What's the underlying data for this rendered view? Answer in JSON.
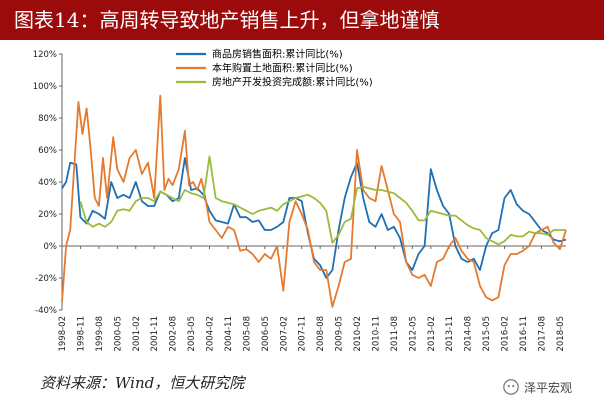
{
  "title": "图表14：高周转导致地产销售上升，但拿地谨慎",
  "source_note": "资料来源：Wind，恒大研究院",
  "watermark": "泽平宏观",
  "chart_data": {
    "type": "line",
    "ylim": [
      -40,
      120
    ],
    "yticks": [
      "-40%",
      "-20%",
      "0%",
      "20%",
      "40%",
      "60%",
      "80%",
      "100%",
      "120%"
    ],
    "ytick_values": [
      -40,
      -20,
      0,
      20,
      40,
      60,
      80,
      100,
      120
    ],
    "y_unit": "%",
    "xlim": [
      "1998-02",
      "2018-08"
    ],
    "x_tick_labels": [
      "1998-02",
      "1998-11",
      "1999-08",
      "2000-05",
      "2001-02",
      "2001-11",
      "2002-08",
      "2003-05",
      "2004-02",
      "2004-11",
      "2005-08",
      "2006-05",
      "2007-02",
      "2007-11",
      "2008-08",
      "2009-05",
      "2010-02",
      "2010-11",
      "2011-08",
      "2012-05",
      "2013-02",
      "2013-11",
      "2014-08",
      "2015-05",
      "2016-02",
      "2016-11",
      "2017-08",
      "2018-05"
    ],
    "legend_position": "top-center",
    "grid": false,
    "series": [
      {
        "name": "商品房销售面积:累计同比(%)",
        "color": "#1f6fb5",
        "points": [
          [
            "1998-02",
            36
          ],
          [
            "1998-04",
            40
          ],
          [
            "1998-06",
            52
          ],
          [
            "1998-09",
            51
          ],
          [
            "1998-11",
            18
          ],
          [
            "1999-02",
            14
          ],
          [
            "1999-05",
            22
          ],
          [
            "1999-08",
            20
          ],
          [
            "1999-11",
            17
          ],
          [
            "2000-02",
            40
          ],
          [
            "2000-05",
            30
          ],
          [
            "2000-08",
            32
          ],
          [
            "2000-11",
            30
          ],
          [
            "2001-02",
            40
          ],
          [
            "2001-05",
            28
          ],
          [
            "2001-08",
            25
          ],
          [
            "2001-11",
            25
          ],
          [
            "2002-02",
            34
          ],
          [
            "2002-05",
            32
          ],
          [
            "2002-08",
            28
          ],
          [
            "2002-11",
            30
          ],
          [
            "2003-02",
            55
          ],
          [
            "2003-05",
            35
          ],
          [
            "2003-08",
            36
          ],
          [
            "2003-11",
            32
          ],
          [
            "2004-02",
            22
          ],
          [
            "2004-05",
            16
          ],
          [
            "2004-08",
            15
          ],
          [
            "2004-11",
            14
          ],
          [
            "2005-02",
            26
          ],
          [
            "2005-05",
            18
          ],
          [
            "2005-08",
            18
          ],
          [
            "2005-11",
            15
          ],
          [
            "2006-02",
            16
          ],
          [
            "2006-05",
            10
          ],
          [
            "2006-08",
            10
          ],
          [
            "2006-11",
            12
          ],
          [
            "2007-02",
            15
          ],
          [
            "2007-05",
            30
          ],
          [
            "2007-08",
            30
          ],
          [
            "2007-11",
            28
          ],
          [
            "2008-02",
            8
          ],
          [
            "2008-05",
            -8
          ],
          [
            "2008-08",
            -12
          ],
          [
            "2008-11",
            -20
          ],
          [
            "2009-02",
            -15
          ],
          [
            "2009-05",
            10
          ],
          [
            "2009-08",
            30
          ],
          [
            "2009-11",
            43
          ],
          [
            "2010-02",
            52
          ],
          [
            "2010-05",
            30
          ],
          [
            "2010-08",
            15
          ],
          [
            "2010-11",
            12
          ],
          [
            "2011-02",
            20
          ],
          [
            "2011-05",
            10
          ],
          [
            "2011-08",
            12
          ],
          [
            "2011-11",
            5
          ],
          [
            "2012-02",
            -10
          ],
          [
            "2012-05",
            -15
          ],
          [
            "2012-08",
            -5
          ],
          [
            "2012-11",
            0
          ],
          [
            "2013-02",
            48
          ],
          [
            "2013-05",
            35
          ],
          [
            "2013-08",
            25
          ],
          [
            "2013-11",
            20
          ],
          [
            "2014-02",
            0
          ],
          [
            "2014-05",
            -8
          ],
          [
            "2014-08",
            -10
          ],
          [
            "2014-11",
            -8
          ],
          [
            "2015-02",
            -15
          ],
          [
            "2015-05",
            0
          ],
          [
            "2015-08",
            8
          ],
          [
            "2015-11",
            10
          ],
          [
            "2016-02",
            30
          ],
          [
            "2016-05",
            35
          ],
          [
            "2016-08",
            26
          ],
          [
            "2016-11",
            22
          ],
          [
            "2017-02",
            20
          ],
          [
            "2017-05",
            15
          ],
          [
            "2017-08",
            10
          ],
          [
            "2017-11",
            8
          ],
          [
            "2018-02",
            4
          ],
          [
            "2018-05",
            3
          ],
          [
            "2018-08",
            4
          ]
        ]
      },
      {
        "name": "本年购置土地面积:累计同比(%)",
        "color": "#e57a2e",
        "points": [
          [
            "1998-02",
            -35
          ],
          [
            "1998-04",
            0
          ],
          [
            "1998-06",
            10
          ],
          [
            "1998-08",
            50
          ],
          [
            "1998-10",
            90
          ],
          [
            "1998-12",
            70
          ],
          [
            "1999-02",
            86
          ],
          [
            "1999-04",
            60
          ],
          [
            "1999-06",
            30
          ],
          [
            "1999-08",
            25
          ],
          [
            "1999-10",
            55
          ],
          [
            "1999-12",
            30
          ],
          [
            "2000-03",
            68
          ],
          [
            "2000-05",
            48
          ],
          [
            "2000-08",
            40
          ],
          [
            "2000-11",
            55
          ],
          [
            "2001-02",
            60
          ],
          [
            "2001-05",
            45
          ],
          [
            "2001-08",
            52
          ],
          [
            "2001-11",
            30
          ],
          [
            "2002-02",
            94
          ],
          [
            "2002-04",
            35
          ],
          [
            "2002-06",
            42
          ],
          [
            "2002-08",
            38
          ],
          [
            "2002-11",
            48
          ],
          [
            "2003-02",
            72
          ],
          [
            "2003-04",
            38
          ],
          [
            "2003-06",
            40
          ],
          [
            "2003-08",
            35
          ],
          [
            "2003-10",
            42
          ],
          [
            "2003-12",
            30
          ],
          [
            "2004-02",
            15
          ],
          [
            "2004-05",
            10
          ],
          [
            "2004-08",
            5
          ],
          [
            "2004-11",
            12
          ],
          [
            "2005-02",
            10
          ],
          [
            "2005-05",
            -3
          ],
          [
            "2005-08",
            -2
          ],
          [
            "2005-11",
            -5
          ],
          [
            "2006-02",
            -10
          ],
          [
            "2006-05",
            -5
          ],
          [
            "2006-08",
            -8
          ],
          [
            "2006-11",
            0
          ],
          [
            "2007-02",
            -28
          ],
          [
            "2007-05",
            15
          ],
          [
            "2007-08",
            28
          ],
          [
            "2007-11",
            20
          ],
          [
            "2008-02",
            10
          ],
          [
            "2008-05",
            -10
          ],
          [
            "2008-08",
            -15
          ],
          [
            "2008-11",
            -15
          ],
          [
            "2009-02",
            -38
          ],
          [
            "2009-05",
            -25
          ],
          [
            "2009-08",
            -10
          ],
          [
            "2009-11",
            -8
          ],
          [
            "2010-02",
            60
          ],
          [
            "2010-05",
            35
          ],
          [
            "2010-08",
            30
          ],
          [
            "2010-11",
            28
          ],
          [
            "2011-02",
            50
          ],
          [
            "2011-05",
            35
          ],
          [
            "2011-08",
            20
          ],
          [
            "2011-11",
            15
          ],
          [
            "2012-02",
            -10
          ],
          [
            "2012-05",
            -18
          ],
          [
            "2012-08",
            -20
          ],
          [
            "2012-11",
            -18
          ],
          [
            "2013-02",
            -25
          ],
          [
            "2013-05",
            -10
          ],
          [
            "2013-08",
            -8
          ],
          [
            "2013-11",
            0
          ],
          [
            "2014-02",
            5
          ],
          [
            "2014-05",
            -3
          ],
          [
            "2014-08",
            -8
          ],
          [
            "2014-11",
            -10
          ],
          [
            "2015-02",
            -25
          ],
          [
            "2015-05",
            -32
          ],
          [
            "2015-08",
            -34
          ],
          [
            "2015-11",
            -32
          ],
          [
            "2016-02",
            -12
          ],
          [
            "2016-05",
            -5
          ],
          [
            "2016-08",
            -5
          ],
          [
            "2016-11",
            -3
          ],
          [
            "2017-02",
            0
          ],
          [
            "2017-05",
            8
          ],
          [
            "2017-08",
            10
          ],
          [
            "2017-11",
            12
          ],
          [
            "2018-02",
            2
          ],
          [
            "2018-05",
            -2
          ],
          [
            "2018-08",
            10
          ]
        ]
      },
      {
        "name": "房地产开发投资完成额:累计同比(%)",
        "color": "#9bbb3c",
        "points": [
          [
            "1998-11",
            28
          ],
          [
            "1999-02",
            15
          ],
          [
            "1999-05",
            12
          ],
          [
            "1999-08",
            14
          ],
          [
            "1999-11",
            12
          ],
          [
            "2000-02",
            15
          ],
          [
            "2000-05",
            22
          ],
          [
            "2000-08",
            23
          ],
          [
            "2000-11",
            22
          ],
          [
            "2001-02",
            28
          ],
          [
            "2001-05",
            30
          ],
          [
            "2001-08",
            30
          ],
          [
            "2001-11",
            28
          ],
          [
            "2002-02",
            34
          ],
          [
            "2002-05",
            32
          ],
          [
            "2002-08",
            30
          ],
          [
            "2002-11",
            28
          ],
          [
            "2003-02",
            35
          ],
          [
            "2003-05",
            33
          ],
          [
            "2003-08",
            32
          ],
          [
            "2003-11",
            30
          ],
          [
            "2004-02",
            56
          ],
          [
            "2004-05",
            30
          ],
          [
            "2004-08",
            28
          ],
          [
            "2004-11",
            27
          ],
          [
            "2005-02",
            26
          ],
          [
            "2005-05",
            24
          ],
          [
            "2005-08",
            22
          ],
          [
            "2005-11",
            20
          ],
          [
            "2006-02",
            22
          ],
          [
            "2006-05",
            23
          ],
          [
            "2006-08",
            24
          ],
          [
            "2006-11",
            22
          ],
          [
            "2007-02",
            26
          ],
          [
            "2007-05",
            28
          ],
          [
            "2007-08",
            30
          ],
          [
            "2007-11",
            31
          ],
          [
            "2008-02",
            32
          ],
          [
            "2008-05",
            30
          ],
          [
            "2008-08",
            27
          ],
          [
            "2008-11",
            22
          ],
          [
            "2009-02",
            2
          ],
          [
            "2009-05",
            7
          ],
          [
            "2009-08",
            15
          ],
          [
            "2009-11",
            17
          ],
          [
            "2010-02",
            36
          ],
          [
            "2010-05",
            37
          ],
          [
            "2010-08",
            36
          ],
          [
            "2010-11",
            35
          ],
          [
            "2011-02",
            35
          ],
          [
            "2011-05",
            34
          ],
          [
            "2011-08",
            33
          ],
          [
            "2011-11",
            30
          ],
          [
            "2012-02",
            27
          ],
          [
            "2012-05",
            22
          ],
          [
            "2012-08",
            16
          ],
          [
            "2012-11",
            16
          ],
          [
            "2013-02",
            22
          ],
          [
            "2013-05",
            21
          ],
          [
            "2013-08",
            20
          ],
          [
            "2013-11",
            19
          ],
          [
            "2014-02",
            19
          ],
          [
            "2014-05",
            16
          ],
          [
            "2014-08",
            13
          ],
          [
            "2014-11",
            11
          ],
          [
            "2015-02",
            10
          ],
          [
            "2015-05",
            5
          ],
          [
            "2015-08",
            3
          ],
          [
            "2015-11",
            1
          ],
          [
            "2016-02",
            3
          ],
          [
            "2016-05",
            7
          ],
          [
            "2016-08",
            6
          ],
          [
            "2016-11",
            6
          ],
          [
            "2017-02",
            9
          ],
          [
            "2017-05",
            8
          ],
          [
            "2017-08",
            8
          ],
          [
            "2017-11",
            7
          ],
          [
            "2018-02",
            10
          ],
          [
            "2018-05",
            10
          ],
          [
            "2018-08",
            10
          ]
        ]
      }
    ]
  }
}
